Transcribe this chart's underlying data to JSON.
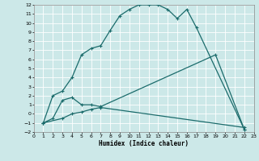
{
  "xlabel": "Humidex (Indice chaleur)",
  "bg_color": "#cce8e8",
  "grid_color": "#b8d8d8",
  "line_color": "#1a6b6b",
  "xlim": [
    0,
    23
  ],
  "ylim": [
    -2,
    12
  ],
  "xticks": [
    0,
    1,
    2,
    3,
    4,
    5,
    6,
    7,
    8,
    9,
    10,
    11,
    12,
    13,
    14,
    15,
    16,
    17,
    18,
    19,
    20,
    21,
    22,
    23
  ],
  "yticks": [
    -2,
    -1,
    0,
    1,
    2,
    3,
    4,
    5,
    6,
    7,
    8,
    9,
    10,
    11,
    12
  ],
  "curve1_x": [
    1,
    2,
    3,
    4,
    5,
    6,
    7,
    8,
    9,
    10,
    11,
    12,
    13,
    14,
    15,
    16,
    17,
    22
  ],
  "curve1_y": [
    -1.0,
    2.0,
    2.5,
    4.0,
    6.5,
    7.2,
    7.5,
    9.2,
    10.8,
    11.5,
    12.0,
    12.0,
    12.0,
    11.5,
    10.5,
    11.5,
    9.5,
    -1.7
  ],
  "curve2_x": [
    1,
    2,
    3,
    4,
    5,
    6,
    7,
    19,
    22
  ],
  "curve2_y": [
    -1.0,
    -0.5,
    1.5,
    1.8,
    1.0,
    1.0,
    0.8,
    6.5,
    -1.7
  ],
  "curve3_x": [
    1,
    3,
    4,
    5,
    6,
    7,
    22
  ],
  "curve3_y": [
    -1.0,
    -0.5,
    0.0,
    0.2,
    0.5,
    0.7,
    -1.5
  ]
}
